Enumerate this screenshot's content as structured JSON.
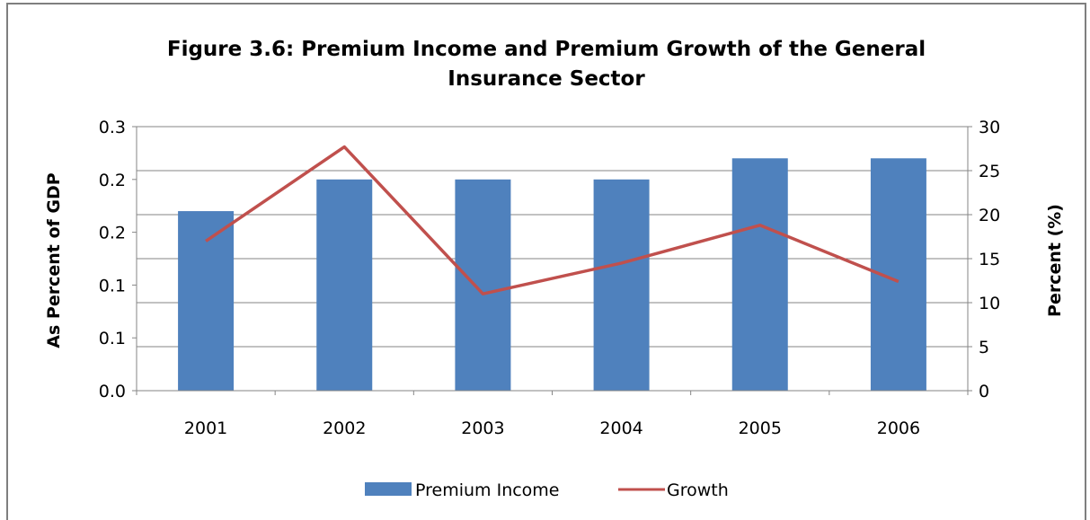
{
  "chart_data": {
    "type": "bar",
    "title_lines": [
      "Figure 3.6: Premium Income and Premium Growth of the General",
      "Insurance Sector"
    ],
    "categories": [
      "2001",
      "2002",
      "2003",
      "2004",
      "2005",
      "2006"
    ],
    "series": [
      {
        "name": "Premium Income",
        "type": "bar",
        "axis": "left",
        "color": "#4f81bd",
        "values": [
          0.17,
          0.2,
          0.2,
          0.2,
          0.22,
          0.22
        ]
      },
      {
        "name": "Growth",
        "type": "line",
        "axis": "right",
        "color": "#c0504d",
        "values": [
          17,
          27.7,
          11,
          14.5,
          18.8,
          12.4
        ]
      }
    ],
    "y_left": {
      "label": "As Percent of GDP",
      "range": [
        0,
        0.25
      ],
      "ticks": [
        0,
        0.05,
        0.1,
        0.15,
        0.2,
        0.25
      ],
      "tick_labels": [
        "0.0",
        "0.1",
        "0.1",
        "0.2",
        "0.2",
        "0.3"
      ]
    },
    "y_right": {
      "label": "Percent (%)",
      "range": [
        0,
        30
      ],
      "ticks": [
        0,
        5,
        10,
        15,
        20,
        25,
        30
      ],
      "tick_labels": [
        "0",
        "5",
        "10",
        "15",
        "20",
        "25",
        "30"
      ]
    },
    "grid": true,
    "legend_position": "bottom"
  }
}
